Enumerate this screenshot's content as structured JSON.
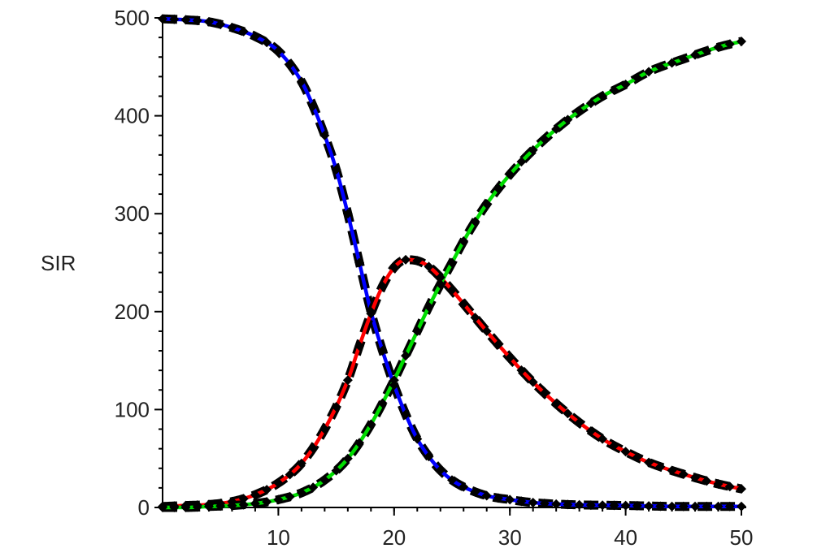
{
  "chart_data": {
    "type": "line",
    "ylabel": "SIR",
    "xlim": [
      0,
      50
    ],
    "ylim": [
      0,
      500
    ],
    "x_ticks": [
      10,
      20,
      30,
      40,
      50
    ],
    "x_tick_labels": [
      "10",
      "20",
      "30",
      "40",
      "50"
    ],
    "y_ticks": [
      0,
      100,
      200,
      300,
      400,
      500
    ],
    "y_tick_labels": [
      "0",
      "100",
      "200",
      "300",
      "400",
      "500"
    ],
    "grid": false,
    "legend": "none",
    "marker_style": "black diamonds with dashed black line",
    "series": [
      {
        "color": "#0000ff",
        "x": [
          0,
          2,
          4,
          6,
          8,
          10,
          12,
          13,
          14,
          15,
          16,
          17,
          18,
          19,
          20,
          21,
          22,
          23,
          24,
          25,
          26,
          28,
          30,
          32,
          35,
          40,
          45,
          50
        ],
        "values": [
          499,
          498,
          496,
          490,
          481,
          466,
          435,
          410,
          380,
          345,
          300,
          250,
          200,
          160,
          125,
          95,
          70,
          52,
          38,
          28,
          21,
          12,
          8,
          5,
          3,
          2,
          1,
          1
        ]
      },
      {
        "color": "#ff0000",
        "x": [
          0,
          2,
          4,
          6,
          8,
          10,
          12,
          14,
          16,
          17,
          18,
          19,
          20,
          21,
          22,
          23,
          24,
          25,
          26,
          28,
          30,
          32,
          35,
          38,
          40,
          42,
          45,
          48,
          50
        ],
        "values": [
          1,
          2,
          3,
          6,
          13,
          25,
          45,
          80,
          130,
          165,
          198,
          226,
          245,
          253,
          252,
          246,
          235,
          222,
          208,
          180,
          153,
          128,
          96,
          70,
          57,
          46,
          34,
          24,
          19
        ]
      },
      {
        "color": "#00dd00",
        "x": [
          0,
          2,
          4,
          6,
          8,
          10,
          12,
          14,
          16,
          18,
          20,
          21,
          22,
          23,
          24,
          25,
          26,
          27,
          28,
          30,
          32,
          35,
          38,
          40,
          42,
          45,
          48,
          50
        ],
        "values": [
          0,
          0,
          1,
          2,
          4,
          8,
          15,
          28,
          50,
          85,
          130,
          155,
          180,
          205,
          228,
          250,
          272,
          292,
          310,
          340,
          365,
          396,
          420,
          432,
          445,
          458,
          470,
          476
        ]
      }
    ]
  }
}
